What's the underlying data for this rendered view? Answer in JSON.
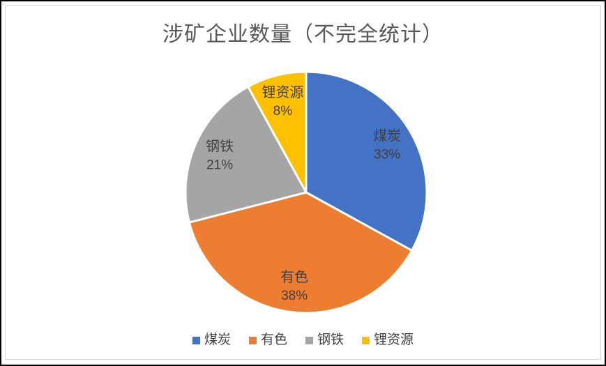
{
  "window": {
    "background": "#FFFFFF",
    "outer_border_color": "#000000",
    "frame_border_color": "#D9D9D9"
  },
  "chart_data": {
    "type": "pie",
    "title": "涉矿企业数量（不完全统计）",
    "title_color": "#595959",
    "categories": [
      "煤炭",
      "有色",
      "钢铁",
      "锂资源"
    ],
    "values": [
      33,
      38,
      21,
      8
    ],
    "percent_labels": [
      "33%",
      "38%",
      "21%",
      "8%"
    ],
    "colors": [
      "#4472C4",
      "#ED7D31",
      "#A5A5A5",
      "#FFC000"
    ],
    "slice_names": [
      "coal",
      "nonferrous",
      "steel",
      "lithium"
    ],
    "label_color": "#404040",
    "legend_position": "bottom",
    "legend_color": "#404040",
    "start_angle_deg": 0,
    "direction": "clockwise",
    "slice_border_color": "#FFFFFF"
  }
}
